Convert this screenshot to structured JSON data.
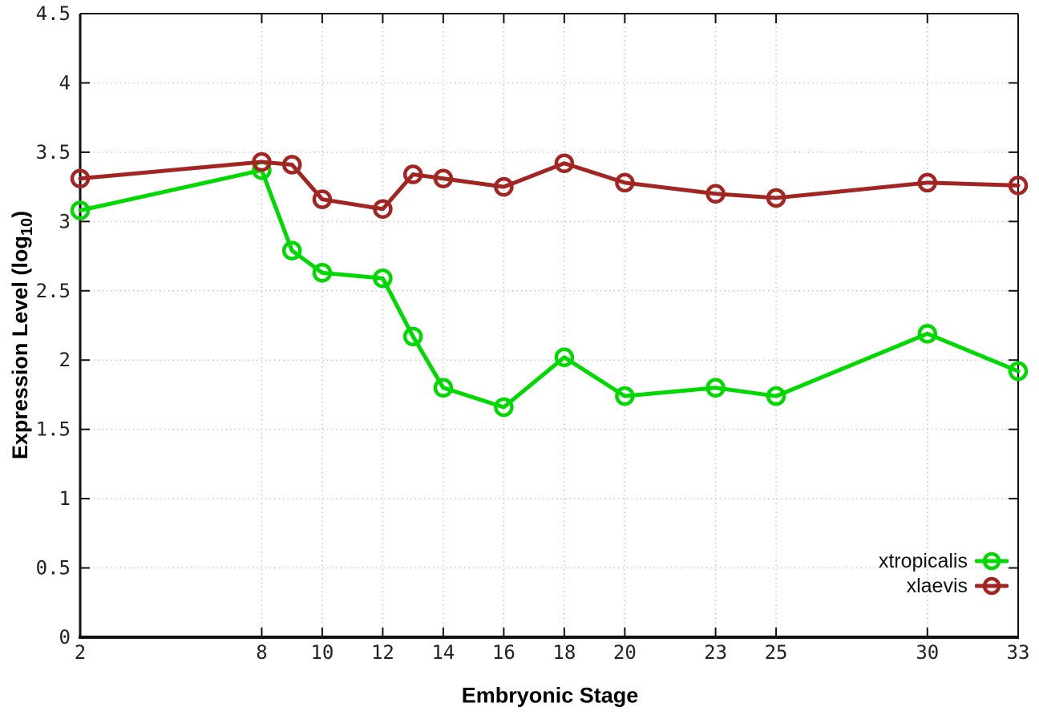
{
  "chart_data": {
    "type": "line",
    "title": "",
    "xlabel": "Embryonic Stage",
    "ylabel_prefix": "Expression Level (log",
    "ylabel_sub": "10",
    "ylabel_suffix": ")",
    "x": [
      2,
      8,
      9,
      10,
      12,
      13,
      14,
      16,
      18,
      20,
      23,
      25,
      30,
      33
    ],
    "series": [
      {
        "name": "xtropicalis",
        "color": "#00d900",
        "values": [
          3.08,
          3.37,
          2.79,
          2.63,
          2.59,
          2.17,
          1.8,
          1.66,
          2.02,
          1.74,
          1.8,
          1.74,
          2.19,
          1.92
        ]
      },
      {
        "name": "xlaevis",
        "color": "#a22521",
        "values": [
          3.31,
          3.43,
          3.41,
          3.16,
          3.09,
          3.34,
          3.31,
          3.25,
          3.42,
          3.28,
          3.2,
          3.17,
          3.28,
          3.26
        ]
      }
    ],
    "xlim": [
      2,
      33
    ],
    "ylim": [
      0,
      4.5
    ],
    "x_ticks": [
      2,
      8,
      10,
      12,
      14,
      16,
      18,
      20,
      23,
      25,
      30,
      33
    ],
    "y_ticks": [
      0,
      0.5,
      1,
      1.5,
      2,
      2.5,
      3,
      3.5,
      4,
      4.5
    ],
    "grid": true,
    "legend_position": "bottom-right",
    "grid_color": "#c8c8c8",
    "axis_color": "#111111",
    "background_color": "#ffffff"
  }
}
